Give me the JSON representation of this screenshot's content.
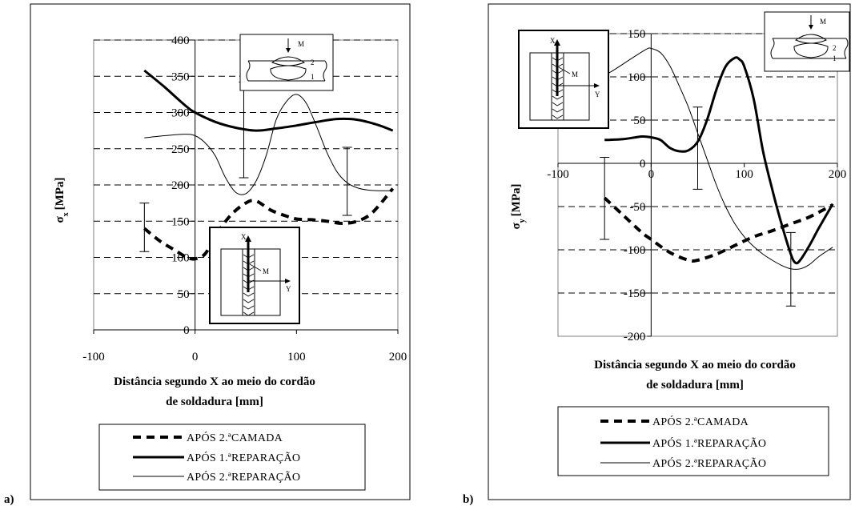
{
  "figure": {
    "panels": [
      "a)",
      "b)"
    ]
  },
  "chart_data": [
    {
      "type": "line",
      "panel_label": "a)",
      "ylabel": "σx [MPa]",
      "ylabel_main": "σ",
      "ylabel_sub": "x",
      "ylabel_unit": "[MPa]",
      "xlabel_lines": [
        "Distância segundo X ao meio do cordão",
        "de soldadura [mm]"
      ],
      "xlim": [
        -100,
        200
      ],
      "ylim": [
        0,
        400
      ],
      "xticks": [
        -100,
        0,
        100,
        200
      ],
      "xtick_labels": [
        "-100",
        "0",
        "100",
        "200"
      ],
      "yticks": [
        0,
        50,
        100,
        150,
        200,
        250,
        300,
        350,
        400
      ],
      "ytick_labels": [
        "0",
        "50",
        "100",
        "150",
        "200",
        "250",
        "300",
        "350",
        "400"
      ],
      "grid": "horizontal dashed",
      "legend_entries": [
        "APÓS 2.ªCAMADA",
        "APÓS 1.ªREPARAÇÃO",
        "APÓS 2.ªREPARAÇÃO"
      ],
      "series": [
        {
          "name": "APÓS 2.ªCAMADA",
          "style": "thick-dashed",
          "x": [
            -50,
            -35,
            -20,
            -8,
            0,
            10,
            20,
            35,
            50,
            60,
            75,
            90,
            100,
            115,
            130,
            145,
            160,
            175,
            195
          ],
          "y": [
            140,
            123,
            110,
            100,
            98,
            105,
            130,
            158,
            175,
            178,
            165,
            157,
            153,
            152,
            150,
            147,
            150,
            162,
            195
          ]
        },
        {
          "name": "APÓS 1.ªREPARAÇÃO",
          "style": "thick-solid",
          "x": [
            -50,
            -30,
            -10,
            0,
            20,
            40,
            60,
            80,
            100,
            120,
            140,
            160,
            180,
            195
          ],
          "y": [
            358,
            335,
            310,
            300,
            287,
            279,
            275,
            278,
            282,
            287,
            291,
            290,
            283,
            275
          ]
        },
        {
          "name": "APÓS 2.ªREPARAÇÃO",
          "style": "thin-solid",
          "x": [
            -50,
            -30,
            -10,
            0,
            10,
            20,
            30,
            40,
            50,
            60,
            70,
            80,
            90,
            100,
            110,
            120,
            130,
            140,
            150,
            160,
            170,
            180,
            195
          ],
          "y": [
            265,
            268,
            270,
            268,
            258,
            240,
            210,
            190,
            188,
            205,
            240,
            290,
            315,
            325,
            312,
            280,
            245,
            218,
            203,
            196,
            193,
            192,
            192
          ]
        }
      ],
      "error_bars": [
        {
          "x": -50,
          "low": 108,
          "high": 175
        },
        {
          "x": 48,
          "low": 210,
          "high": 342
        },
        {
          "x": 150,
          "low": 158,
          "high": 252
        }
      ],
      "inset_labels": {
        "moment": "M",
        "layer2": "2",
        "layer1": "1",
        "axis_x": "X",
        "axis_y": "Y",
        "point": "M"
      }
    },
    {
      "type": "line",
      "panel_label": "b)",
      "ylabel": "σy [MPa]",
      "ylabel_main": "σ",
      "ylabel_sub": "y",
      "ylabel_unit": "[MPa]",
      "xlabel_lines": [
        "Distância segundo X ao meio do cordão",
        "de soldadura [mm]"
      ],
      "xlim": [
        -100,
        200
      ],
      "ylim": [
        -200,
        150
      ],
      "xticks": [
        -100,
        0,
        100,
        200
      ],
      "xtick_labels": [
        "-100",
        "0",
        "100",
        "200"
      ],
      "yticks": [
        -200,
        -150,
        -100,
        -50,
        0,
        50,
        100,
        150
      ],
      "ytick_labels": [
        "-200",
        "-150",
        "-100",
        "-50",
        "0",
        "50",
        "100",
        "150"
      ],
      "grid": "horizontal dashed",
      "legend_entries": [
        "APÓS 2.ªCAMADA",
        "APÓS 1.ªREPARAÇÃO",
        "APÓS 2.ªREPARAÇÃO"
      ],
      "series": [
        {
          "name": "APÓS 2.ªCAMADA",
          "style": "thick-dashed",
          "x": [
            -50,
            -30,
            -10,
            0,
            20,
            40,
            50,
            70,
            90,
            110,
            130,
            150,
            170,
            195
          ],
          "y": [
            -40,
            -60,
            -80,
            -88,
            -103,
            -112,
            -112,
            -105,
            -95,
            -85,
            -78,
            -70,
            -62,
            -48
          ]
        },
        {
          "name": "APÓS 1.ªREPARAÇÃO",
          "style": "thick-solid",
          "x": [
            -50,
            -30,
            -10,
            0,
            10,
            20,
            30,
            40,
            50,
            60,
            70,
            80,
            90,
            95,
            100,
            110,
            120,
            130,
            140,
            150,
            155,
            160,
            170,
            180,
            195
          ],
          "y": [
            27,
            28,
            31,
            30,
            27,
            18,
            14,
            15,
            25,
            50,
            85,
            112,
            122,
            120,
            112,
            75,
            15,
            -30,
            -70,
            -105,
            -115,
            -112,
            -95,
            -75,
            -47
          ]
        },
        {
          "name": "APÓS 2.ªREPARAÇÃO",
          "style": "thin-solid",
          "x": [
            -100,
            -80,
            -60,
            -40,
            -20,
            -5,
            0,
            10,
            20,
            30,
            40,
            50,
            60,
            70,
            80,
            90,
            100,
            110,
            120,
            130,
            140,
            150,
            160,
            170,
            180,
            195
          ],
          "y": [
            70,
            82,
            95,
            108,
            122,
            132,
            133,
            128,
            113,
            90,
            65,
            35,
            5,
            -25,
            -50,
            -70,
            -85,
            -96,
            -105,
            -112,
            -118,
            -122,
            -122,
            -117,
            -108,
            -97
          ]
        }
      ],
      "error_bars": [
        {
          "x": -50,
          "low": -88,
          "high": 7
        },
        {
          "x": 50,
          "low": -30,
          "high": 65
        },
        {
          "x": 150,
          "low": -165,
          "high": -80
        }
      ],
      "inset_labels": {
        "moment": "M",
        "layer2": "2",
        "layer1": "1",
        "axis_x": "X",
        "axis_y": "Y",
        "point": "M"
      }
    }
  ]
}
